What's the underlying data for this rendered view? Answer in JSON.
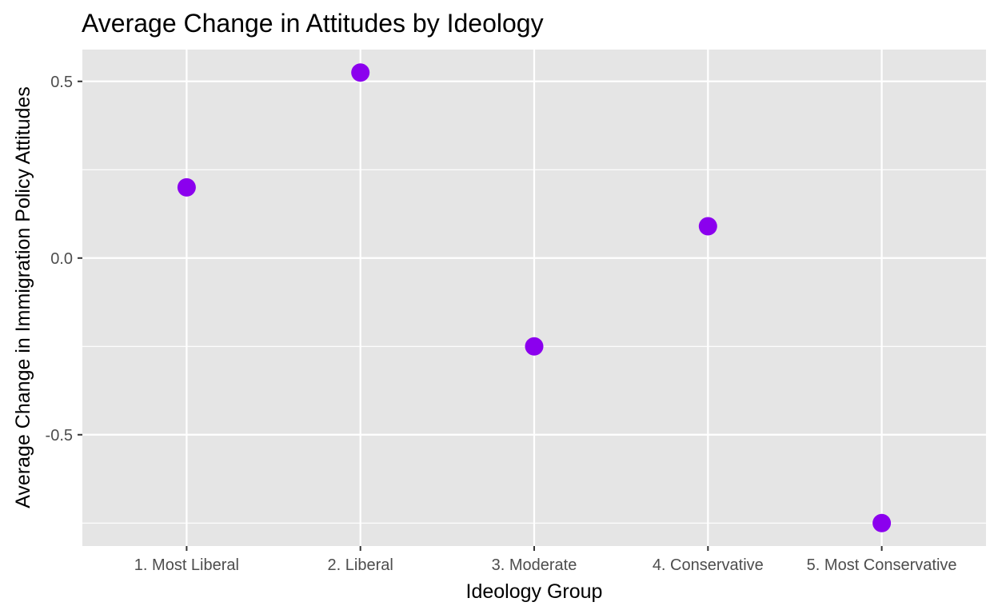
{
  "chart_data": {
    "type": "scatter",
    "title": "Average Change in Attitudes by Ideology",
    "xlabel": "Ideology Group",
    "ylabel": "Average Change in Immigration Policy Attitudes",
    "categories": [
      "1. Most Liberal",
      "2. Liberal",
      "3. Moderate",
      "4. Conservative",
      "5. Most Conservative"
    ],
    "series": [
      {
        "values": [
          0.2,
          0.525,
          -0.25,
          0.09,
          -0.75
        ]
      }
    ],
    "y_ticks": [
      {
        "value": 0.5,
        "label": "0.5"
      },
      {
        "value": 0.0,
        "label": "0.0"
      },
      {
        "value": -0.5,
        "label": "-0.5"
      }
    ],
    "ylim": [
      -0.815,
      0.59
    ],
    "grid": true,
    "legend": "none",
    "colors": {
      "point": "#8b00ee",
      "panel": "#e5e5e5",
      "grid": "#ffffff"
    }
  }
}
